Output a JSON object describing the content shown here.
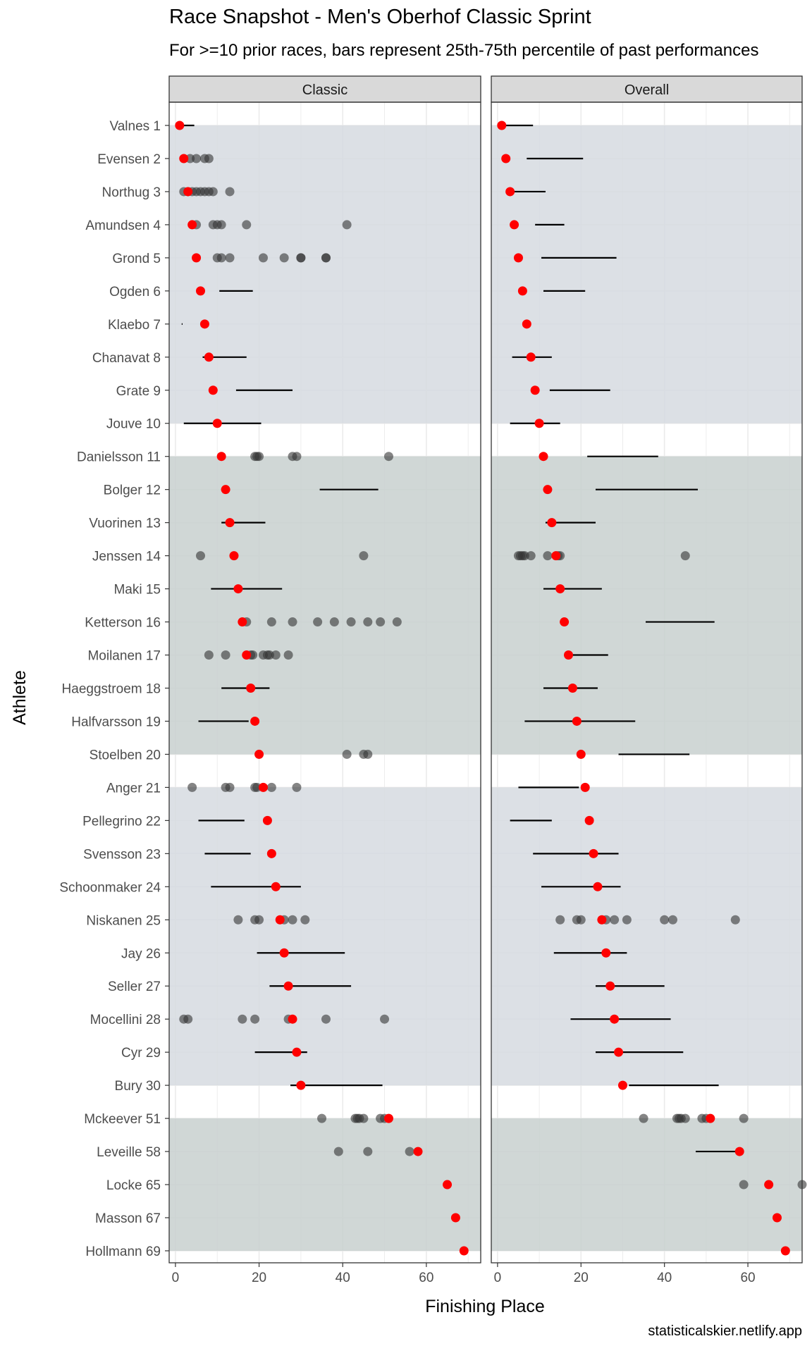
{
  "chart_data": {
    "type": "scatter",
    "title": "Race Snapshot -  Men's Oberhof Classic Sprint",
    "subtitle": "For >=10 prior races, bars represent 25th-75th percentile of past performances",
    "xlabel": "Finishing Place",
    "ylabel": "Athlete",
    "credit": "statisticalskier.netlify.app",
    "xlim": [
      -1.5,
      73
    ],
    "x_ticks": [
      0,
      20,
      40,
      60
    ],
    "grid": true,
    "legend": "none",
    "colors": {
      "current_result": "#ff0000",
      "past_result": "#333333",
      "percentile_bar": "#000000",
      "band_blue": "#d6dbe0",
      "band_green": "#c8d0cf",
      "panel_border": "#333333",
      "strip_fill": "#d9d9d9",
      "grid": "#ebebeb"
    },
    "bands": [
      {
        "from": 0,
        "to": 9,
        "color": "band_blue"
      },
      {
        "from": 10,
        "to": 19,
        "color": "band_green"
      },
      {
        "from": 20,
        "to": 29,
        "color": "band_blue"
      },
      {
        "from": 30,
        "to": 34,
        "color": "band_green"
      }
    ],
    "panels": [
      {
        "name": "Classic",
        "rows": [
          {
            "athlete": "Valnes 1",
            "result": 1,
            "range": [
              1,
              4.5
            ],
            "past": []
          },
          {
            "athlete": "Evensen 2",
            "result": 2,
            "range": null,
            "past": [
              3.5,
              5,
              7,
              8
            ]
          },
          {
            "athlete": "Northug 3",
            "result": 3,
            "range": null,
            "past": [
              2,
              3,
              4,
              5,
              6,
              7,
              8,
              9,
              13
            ]
          },
          {
            "athlete": "Amundsen 4",
            "result": 4,
            "range": null,
            "past": [
              5,
              9,
              10,
              11,
              17,
              41
            ]
          },
          {
            "athlete": "Grond 5",
            "result": 5,
            "range": null,
            "past": [
              10,
              11,
              13,
              21,
              26,
              30,
              30,
              36,
              36
            ]
          },
          {
            "athlete": "Ogden 6",
            "result": 6,
            "range": [
              10.5,
              18.5
            ],
            "past": []
          },
          {
            "athlete": "Klaebo 7",
            "result": 7,
            "range": [
              1.5,
              1.7
            ],
            "past": []
          },
          {
            "athlete": "Chanavat 8",
            "result": 8,
            "range": [
              6.5,
              17
            ],
            "past": []
          },
          {
            "athlete": "Grate 9",
            "result": 9,
            "range": [
              14.5,
              28
            ],
            "past": []
          },
          {
            "athlete": "Jouve 10",
            "result": 10,
            "range": [
              2,
              20.5
            ],
            "past": []
          },
          {
            "athlete": "Danielsson 11",
            "result": 11,
            "range": null,
            "past": [
              19,
              19.5,
              20,
              28,
              29,
              51
            ]
          },
          {
            "athlete": "Bolger 12",
            "result": 12,
            "range": [
              34.5,
              48.5
            ],
            "past": []
          },
          {
            "athlete": "Vuorinen 13",
            "result": 13,
            "range": [
              11,
              21.5
            ],
            "past": []
          },
          {
            "athlete": "Jenssen 14",
            "result": 14,
            "range": null,
            "past": [
              6,
              45
            ]
          },
          {
            "athlete": "Maki 15",
            "result": 15,
            "range": [
              8.5,
              25.5
            ],
            "past": []
          },
          {
            "athlete": "Ketterson 16",
            "result": 16,
            "range": null,
            "past": [
              17,
              23,
              28,
              34,
              38,
              42,
              46,
              49,
              53
            ]
          },
          {
            "athlete": "Moilanen 17",
            "result": 17,
            "range": null,
            "past": [
              8,
              12,
              18,
              18.5,
              21,
              22,
              22.5,
              24,
              27
            ]
          },
          {
            "athlete": "Haeggstroem 18",
            "result": 18,
            "range": [
              11,
              22.5
            ],
            "past": []
          },
          {
            "athlete": "Halfvarsson 19",
            "result": 19,
            "range": [
              5.5,
              17.5
            ],
            "past": []
          },
          {
            "athlete": "Stoelben 20",
            "result": 20,
            "range": null,
            "past": [
              41,
              45,
              46
            ]
          },
          {
            "athlete": "Anger 21",
            "result": 21,
            "range": null,
            "past": [
              4,
              12,
              13,
              19,
              19.5,
              23,
              29
            ]
          },
          {
            "athlete": "Pellegrino 22",
            "result": 22,
            "range": [
              5.5,
              16.5
            ],
            "past": []
          },
          {
            "athlete": "Svensson 23",
            "result": 23,
            "range": [
              7,
              18
            ],
            "past": []
          },
          {
            "athlete": "Schoonmaker 24",
            "result": 24,
            "range": [
              8.5,
              30
            ],
            "past": []
          },
          {
            "athlete": "Niskanen 25",
            "result": 25,
            "range": null,
            "past": [
              15,
              19,
              20,
              26,
              28,
              31
            ]
          },
          {
            "athlete": "Jay 26",
            "result": 26,
            "range": [
              19.5,
              40.5
            ],
            "past": []
          },
          {
            "athlete": "Seller 27",
            "result": 27,
            "range": [
              22.5,
              42
            ],
            "past": []
          },
          {
            "athlete": "Mocellini 28",
            "result": 28,
            "range": null,
            "past": [
              2,
              3,
              16,
              19,
              27,
              36,
              50
            ]
          },
          {
            "athlete": "Cyr 29",
            "result": 29,
            "range": [
              19,
              31.5
            ],
            "past": []
          },
          {
            "athlete": "Bury 30",
            "result": 30,
            "range": [
              27.5,
              49.5
            ],
            "past": []
          },
          {
            "athlete": "Mckeever 51",
            "result": 51,
            "range": null,
            "past": [
              35,
              43,
              43.5,
              44,
              45,
              49,
              50
            ]
          },
          {
            "athlete": "Leveille 58",
            "result": 58,
            "range": null,
            "past": [
              39,
              46,
              56
            ]
          },
          {
            "athlete": "Locke 65",
            "result": 65,
            "range": null,
            "past": []
          },
          {
            "athlete": "Masson 67",
            "result": 67,
            "range": null,
            "past": []
          },
          {
            "athlete": "Hollmann 69",
            "result": 69,
            "range": null,
            "past": []
          }
        ]
      },
      {
        "name": "Overall",
        "rows": [
          {
            "athlete": "Valnes 1",
            "result": 1,
            "range": [
              2,
              8.5
            ],
            "past": []
          },
          {
            "athlete": "Evensen 2",
            "result": 2,
            "range": [
              7,
              20.5
            ],
            "past": []
          },
          {
            "athlete": "Northug 3",
            "result": 3,
            "range": [
              4,
              11.5
            ],
            "past": []
          },
          {
            "athlete": "Amundsen 4",
            "result": 4,
            "range": [
              9,
              16
            ],
            "past": []
          },
          {
            "athlete": "Grond 5",
            "result": 5,
            "range": [
              10.5,
              28.5
            ],
            "past": []
          },
          {
            "athlete": "Ogden 6",
            "result": 6,
            "range": [
              11,
              21
            ],
            "past": []
          },
          {
            "athlete": "Klaebo 7",
            "result": 7,
            "range": null,
            "past": []
          },
          {
            "athlete": "Chanavat 8",
            "result": 8,
            "range": [
              3.5,
              13
            ],
            "past": []
          },
          {
            "athlete": "Grate 9",
            "result": 9,
            "range": [
              12.5,
              27
            ],
            "past": []
          },
          {
            "athlete": "Jouve 10",
            "result": 10,
            "range": [
              3,
              15
            ],
            "past": []
          },
          {
            "athlete": "Danielsson 11",
            "result": 11,
            "range": [
              21.5,
              38.5
            ],
            "past": []
          },
          {
            "athlete": "Bolger 12",
            "result": 12,
            "range": [
              23.5,
              48
            ],
            "past": []
          },
          {
            "athlete": "Vuorinen 13",
            "result": 13,
            "range": [
              11.5,
              23.5
            ],
            "past": []
          },
          {
            "athlete": "Jenssen 14",
            "result": 14,
            "range": null,
            "past": [
              5,
              5.5,
              6,
              6.5,
              8,
              12,
              14.5,
              15,
              45
            ]
          },
          {
            "athlete": "Maki 15",
            "result": 15,
            "range": [
              11,
              25
            ],
            "past": []
          },
          {
            "athlete": "Ketterson 16",
            "result": 16,
            "range": [
              35.5,
              52
            ],
            "past": []
          },
          {
            "athlete": "Moilanen 17",
            "result": 17,
            "range": [
              17,
              26.5
            ],
            "past": []
          },
          {
            "athlete": "Haeggstroem 18",
            "result": 18,
            "range": [
              11,
              24
            ],
            "past": []
          },
          {
            "athlete": "Halfvarsson 19",
            "result": 19,
            "range": [
              6.5,
              33
            ],
            "past": []
          },
          {
            "athlete": "Stoelben 20",
            "result": 20,
            "range": [
              29,
              46
            ],
            "past": []
          },
          {
            "athlete": "Anger 21",
            "result": 21,
            "range": [
              5,
              19.5
            ],
            "past": []
          },
          {
            "athlete": "Pellegrino 22",
            "result": 22,
            "range": [
              3,
              13
            ],
            "past": []
          },
          {
            "athlete": "Svensson 23",
            "result": 23,
            "range": [
              8.5,
              29
            ],
            "past": []
          },
          {
            "athlete": "Schoonmaker 24",
            "result": 24,
            "range": [
              10.5,
              29.5
            ],
            "past": []
          },
          {
            "athlete": "Niskanen 25",
            "result": 25,
            "range": null,
            "past": [
              15,
              19,
              20,
              26,
              28,
              31,
              40,
              42,
              57
            ]
          },
          {
            "athlete": "Jay 26",
            "result": 26,
            "range": [
              13.5,
              31
            ],
            "past": []
          },
          {
            "athlete": "Seller 27",
            "result": 27,
            "range": [
              23.5,
              40
            ],
            "past": []
          },
          {
            "athlete": "Mocellini 28",
            "result": 28,
            "range": [
              17.5,
              41.5
            ],
            "past": []
          },
          {
            "athlete": "Cyr 29",
            "result": 29,
            "range": [
              23.5,
              44.5
            ],
            "past": []
          },
          {
            "athlete": "Bury 30",
            "result": 30,
            "range": [
              31.5,
              53
            ],
            "past": []
          },
          {
            "athlete": "Mckeever 51",
            "result": 51,
            "range": null,
            "past": [
              35,
              43,
              43.5,
              44,
              45,
              49,
              50,
              59
            ]
          },
          {
            "athlete": "Leveille 58",
            "result": 58,
            "range": [
              47.5,
              58
            ],
            "past": []
          },
          {
            "athlete": "Locke 65",
            "result": 65,
            "range": null,
            "past": [
              59,
              73
            ]
          },
          {
            "athlete": "Masson 67",
            "result": 67,
            "range": null,
            "past": []
          },
          {
            "athlete": "Hollmann 69",
            "result": 69,
            "range": null,
            "past": []
          }
        ]
      }
    ]
  }
}
